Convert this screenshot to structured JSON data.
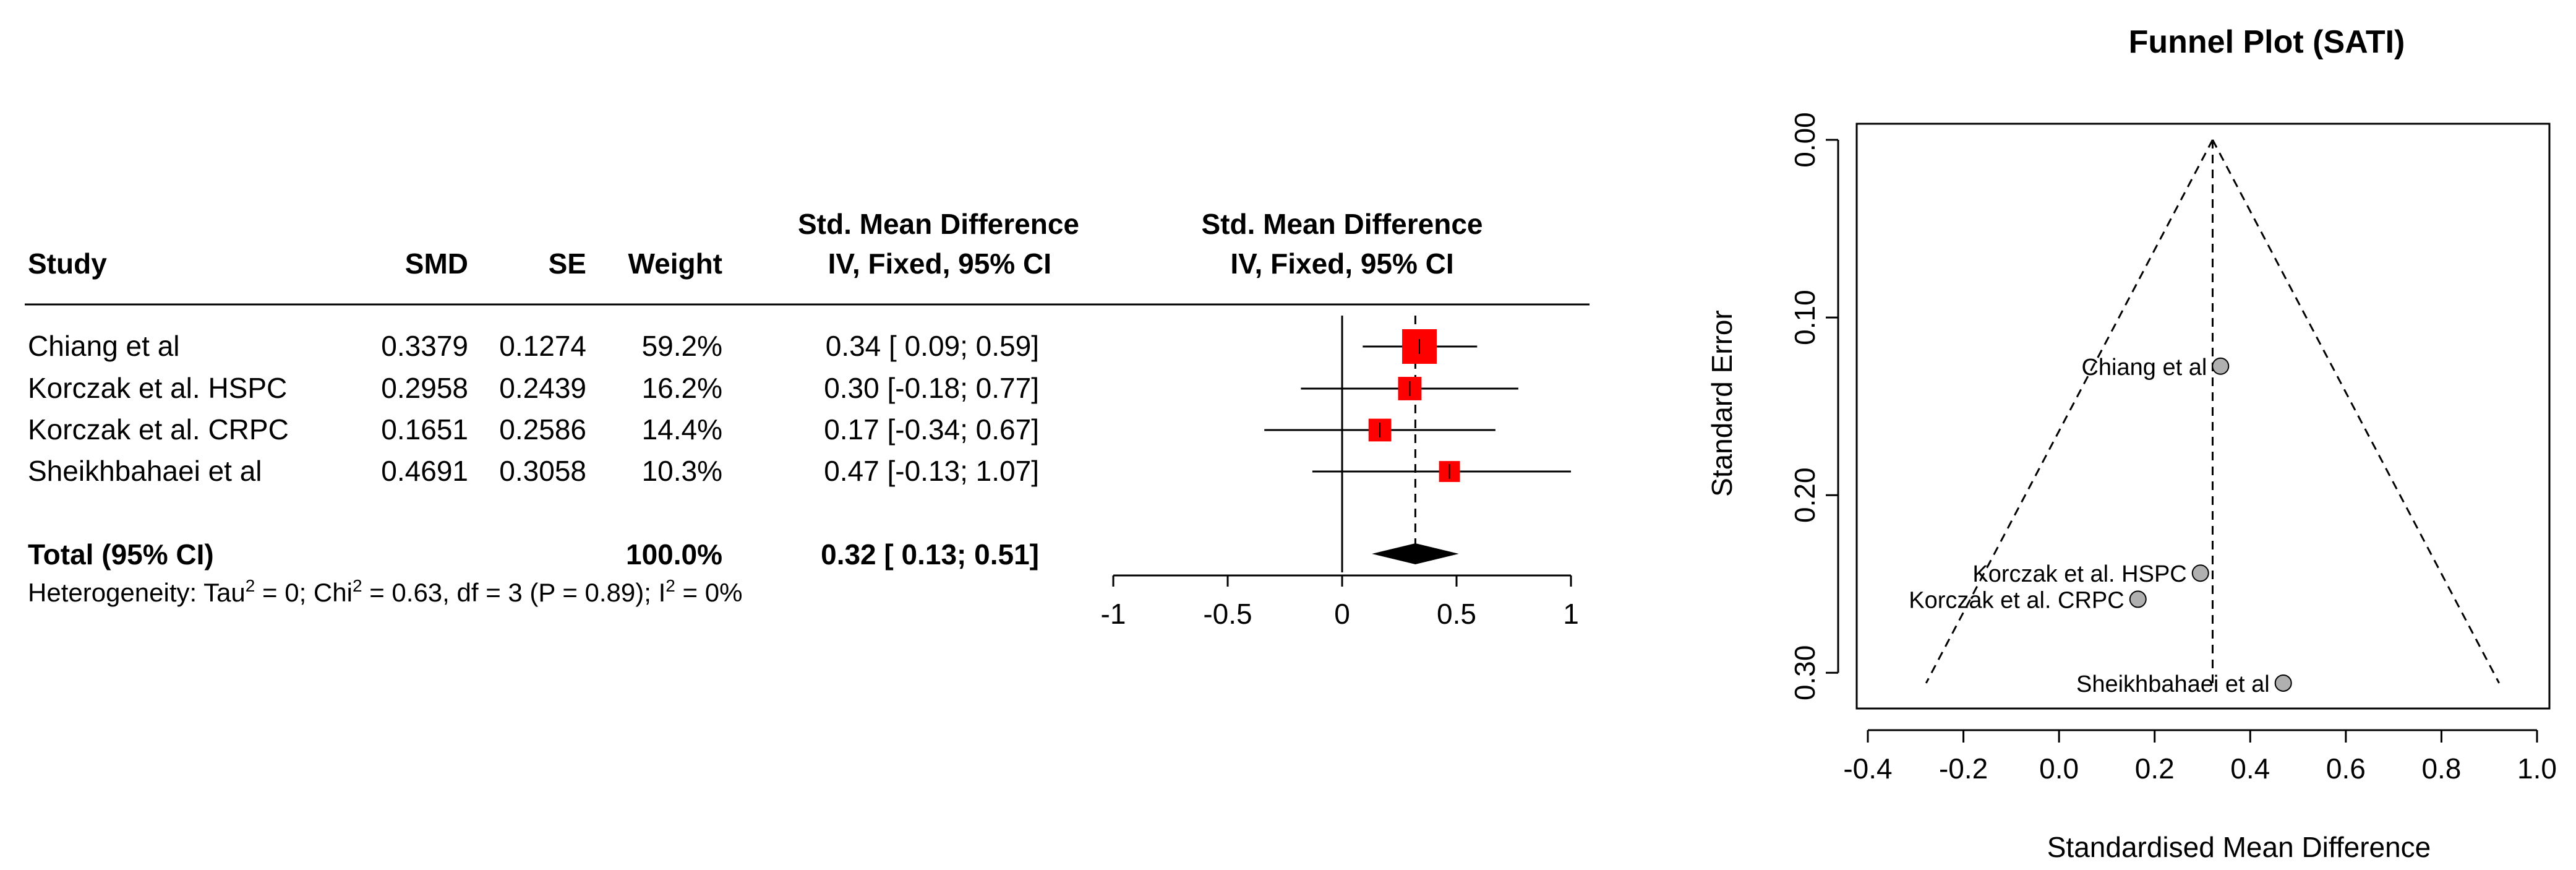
{
  "chart_data": [
    {
      "type": "forest",
      "headers": {
        "study": "Study",
        "smd": "SMD",
        "se": "SE",
        "weight": "Weight",
        "ci_line1": "Std. Mean Difference",
        "ci_line2": "IV, Fixed, 95% CI",
        "plot_line1": "Std. Mean Difference",
        "plot_line2": "IV, Fixed, 95% CI"
      },
      "studies": [
        {
          "study": "Chiang et al",
          "smd": "0.3379",
          "se": "0.1274",
          "weight": "59.2%",
          "ci": "0.34 [ 0.09; 0.59]",
          "est": 0.3379,
          "lo": 0.09,
          "hi": 0.59,
          "w": 59.2
        },
        {
          "study": "Korczak et al. HSPC",
          "smd": "0.2958",
          "se": "0.2439",
          "weight": "16.2%",
          "ci": "0.30 [-0.18; 0.77]",
          "est": 0.2958,
          "lo": -0.18,
          "hi": 0.77,
          "w": 16.2
        },
        {
          "study": "Korczak et al. CRPC",
          "smd": "0.1651",
          "se": "0.2586",
          "weight": "14.4%",
          "ci": "0.17 [-0.34; 0.67]",
          "est": 0.1651,
          "lo": -0.34,
          "hi": 0.67,
          "w": 14.4
        },
        {
          "study": "Sheikhbahaei et al",
          "smd": "0.4691",
          "se": "0.3058",
          "weight": "10.3%",
          "ci": "0.47 [-0.13; 1.07]",
          "est": 0.4691,
          "lo": -0.13,
          "hi": 1.07,
          "w": 10.3
        }
      ],
      "total": {
        "label": "Total (95% CI)",
        "weight": "100.0%",
        "ci": "0.32 [ 0.13; 0.51]",
        "est": 0.32,
        "lo": 0.13,
        "hi": 0.51
      },
      "heterogeneity": {
        "prefix": "Heterogeneity: Tau",
        "tau_exp": "2",
        "tau_val": " = 0; Chi",
        "chi_exp": "2",
        "chi_val": " = 0.63, df = 3 (P = 0.89); I",
        "i_exp": "2",
        "i_val": " = 0%"
      },
      "xlim": [
        -1,
        1
      ],
      "xticks": [
        -1,
        -0.5,
        0,
        0.5,
        1
      ],
      "xtick_labels": [
        "-1",
        "-0.5",
        "0",
        "0.5",
        "1"
      ],
      "colors": {
        "box": "#ff0000",
        "diamond": "#000000"
      }
    },
    {
      "type": "scatter",
      "title": "Funnel Plot (SATI)",
      "xlabel": "Standardised Mean Difference",
      "ylabel": "Standard Error",
      "xlim": [
        -0.4,
        1.0
      ],
      "ylim": [
        0.31,
        0.0
      ],
      "xticks": [
        -0.4,
        -0.2,
        0.0,
        0.2,
        0.4,
        0.6,
        0.8,
        1.0
      ],
      "xtick_labels": [
        "-0.4",
        "-0.2",
        "0.0",
        "0.2",
        "0.4",
        "0.6",
        "0.8",
        "1.0"
      ],
      "yticks": [
        0.0,
        0.1,
        0.2,
        0.3
      ],
      "ytick_labels": [
        "0.00",
        "0.10",
        "0.20",
        "0.30"
      ],
      "pooled": 0.3213,
      "funnel_se_max": 0.3058,
      "points": [
        {
          "label": "Chiang et al",
          "x": 0.3379,
          "y": 0.1274
        },
        {
          "label": "Korczak et al. HSPC",
          "x": 0.2958,
          "y": 0.2439
        },
        {
          "label": "Korczak et al. CRPC",
          "x": 0.1651,
          "y": 0.2586
        },
        {
          "label": "Sheikhbahaei et al",
          "x": 0.4691,
          "y": 0.3058
        }
      ],
      "colors": {
        "point": "#b0b0b0"
      }
    }
  ]
}
